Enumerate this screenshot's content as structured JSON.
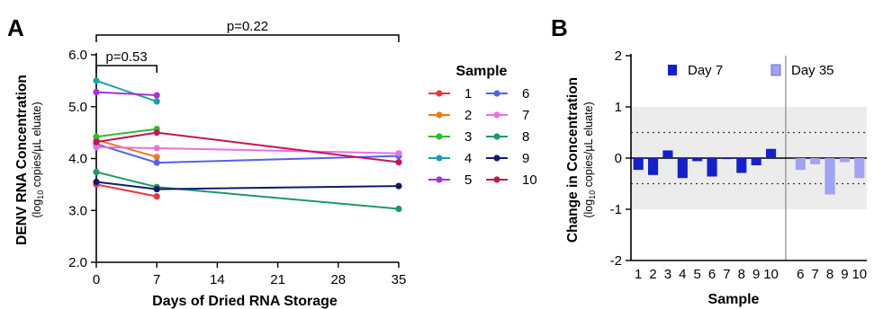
{
  "colors": {
    "s1": "#e8373d",
    "s2": "#f07a1c",
    "s3": "#2dbd2d",
    "s4": "#17a2b0",
    "s5": "#a533d6",
    "s6": "#5560e8",
    "s7": "#ea6ee4",
    "s8": "#1e9a62",
    "s9": "#101a6e",
    "s10": "#c4145a",
    "day7": "#1420c8",
    "day35": "#a0a3f0",
    "band": "#ececec"
  },
  "chart_data": [
    {
      "type": "line",
      "panel_label": "A",
      "xlabel": "Days of Dried RNA Storage",
      "ylabel": "DENV RNA Concentration",
      "ylabel_sub_prefix": "(log",
      "ylabel_sub_subscript": "10",
      "ylabel_sub_suffix": " copies/µL eluate)",
      "xlim": [
        0,
        35
      ],
      "ylim": [
        2.0,
        6.0
      ],
      "x_ticks": [
        "0",
        "7",
        "14",
        "21",
        "28",
        "35"
      ],
      "y_ticks": [
        "2.0",
        "3.0",
        "4.0",
        "5.0",
        "6.0"
      ],
      "legend_title": "Sample",
      "legend_placement": "right",
      "annotations": [
        {
          "text": "p=0.53",
          "x_from": 0,
          "x_to": 7
        },
        {
          "text": "p=0.22",
          "x_from": 0,
          "x_to": 35
        }
      ],
      "series": [
        {
          "name": "1",
          "color_key": "s1",
          "points": [
            [
              0,
              3.5
            ],
            [
              7,
              3.27
            ]
          ]
        },
        {
          "name": "2",
          "color_key": "s2",
          "points": [
            [
              0,
              4.36
            ],
            [
              7,
              4.03
            ]
          ]
        },
        {
          "name": "3",
          "color_key": "s3",
          "points": [
            [
              0,
              4.42
            ],
            [
              7,
              4.57
            ]
          ]
        },
        {
          "name": "4",
          "color_key": "s4",
          "points": [
            [
              0,
              5.5
            ],
            [
              7,
              5.1
            ]
          ]
        },
        {
          "name": "5",
          "color_key": "s5",
          "points": [
            [
              0,
              5.28
            ],
            [
              7,
              5.22
            ]
          ]
        },
        {
          "name": "6",
          "color_key": "s6",
          "points": [
            [
              0,
              4.28
            ],
            [
              7,
              3.92
            ],
            [
              35,
              4.05
            ]
          ]
        },
        {
          "name": "7",
          "color_key": "s7",
          "points": [
            [
              0,
              4.22
            ],
            [
              7,
              4.2
            ],
            [
              35,
              4.1
            ]
          ]
        },
        {
          "name": "8",
          "color_key": "s8",
          "points": [
            [
              0,
              3.74
            ],
            [
              7,
              3.45
            ],
            [
              35,
              3.03
            ]
          ]
        },
        {
          "name": "9",
          "color_key": "s9",
          "points": [
            [
              0,
              3.55
            ],
            [
              7,
              3.41
            ],
            [
              35,
              3.47
            ]
          ]
        },
        {
          "name": "10",
          "color_key": "s10",
          "points": [
            [
              0,
              4.32
            ],
            [
              7,
              4.5
            ],
            [
              35,
              3.93
            ]
          ]
        }
      ]
    },
    {
      "type": "bar",
      "panel_label": "B",
      "xlabel": "Sample",
      "ylabel": "Change in Concentration",
      "ylabel_sub_prefix": "(log",
      "ylabel_sub_subscript": "10",
      "ylabel_sub_suffix": " copies/µL eluate)",
      "ylim": [
        -2,
        2
      ],
      "y_ticks": [
        "-2",
        "-1",
        "0",
        "1",
        "2"
      ],
      "shaded_band": [
        -1,
        1
      ],
      "dotted_lines": [
        0.5,
        -0.5
      ],
      "legend_placement": "top",
      "groups": [
        {
          "name": "Day 7",
          "color_key": "day7",
          "categories": [
            "1",
            "2",
            "3",
            "4",
            "5",
            "6",
            "7",
            "8",
            "9",
            "10"
          ],
          "values": [
            -0.23,
            -0.33,
            0.15,
            -0.39,
            -0.06,
            -0.36,
            -0.02,
            -0.29,
            -0.14,
            0.18
          ]
        },
        {
          "name": "Day 35",
          "color_key": "day35",
          "categories": [
            "6",
            "7",
            "8",
            "9",
            "10"
          ],
          "values": [
            -0.23,
            -0.12,
            -0.71,
            -0.08,
            -0.39
          ]
        }
      ]
    }
  ]
}
